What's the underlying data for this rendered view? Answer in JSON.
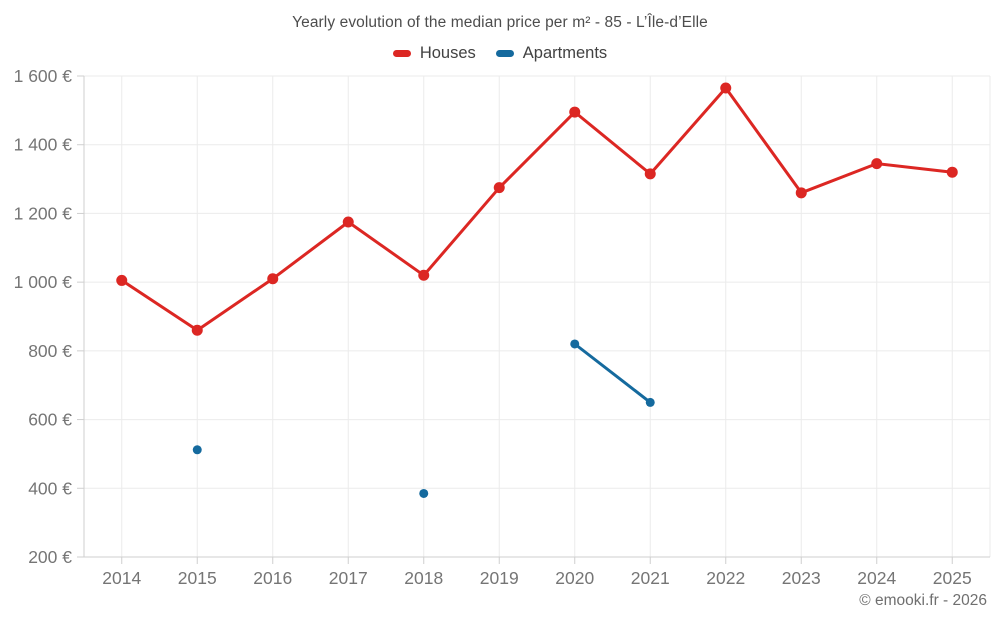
{
  "header": {
    "title": "Yearly evolution of the median price per m² - 85 - L’Île-d’Elle"
  },
  "footer": {
    "credit": "© emooki.fr - 2026"
  },
  "chart_data": {
    "type": "line",
    "title": "Yearly evolution of the median price per m² - 85 - L’Île-d’Elle",
    "xlabel": "",
    "ylabel": "",
    "categories": [
      "2014",
      "2015",
      "2016",
      "2017",
      "2018",
      "2019",
      "2020",
      "2021",
      "2022",
      "2023",
      "2024",
      "2025"
    ],
    "series": [
      {
        "name": "Houses",
        "color": "#dc2723",
        "marker_radius": 5.5,
        "values": [
          1005,
          860,
          1010,
          1175,
          1020,
          1275,
          1495,
          1315,
          1565,
          1260,
          1345,
          1320
        ]
      },
      {
        "name": "Apartments",
        "color": "#156a9e",
        "marker_radius": 4.5,
        "values": [
          null,
          512,
          null,
          null,
          385,
          null,
          820,
          650,
          null,
          null,
          null,
          null
        ]
      }
    ],
    "ylim": [
      200,
      1600
    ],
    "y_ticks": [
      200,
      400,
      600,
      800,
      1000,
      1200,
      1400,
      1600
    ],
    "y_tick_labels": [
      "200 €",
      "400 €",
      "600 €",
      "800 €",
      "1 000 €",
      "1 200 €",
      "1 400 €",
      "1 600 €"
    ],
    "grid": true,
    "legend_position": "top",
    "colors": {
      "grid": "#ebebeb",
      "axis": "#cfcfcf",
      "axis_text": "#757575"
    }
  }
}
